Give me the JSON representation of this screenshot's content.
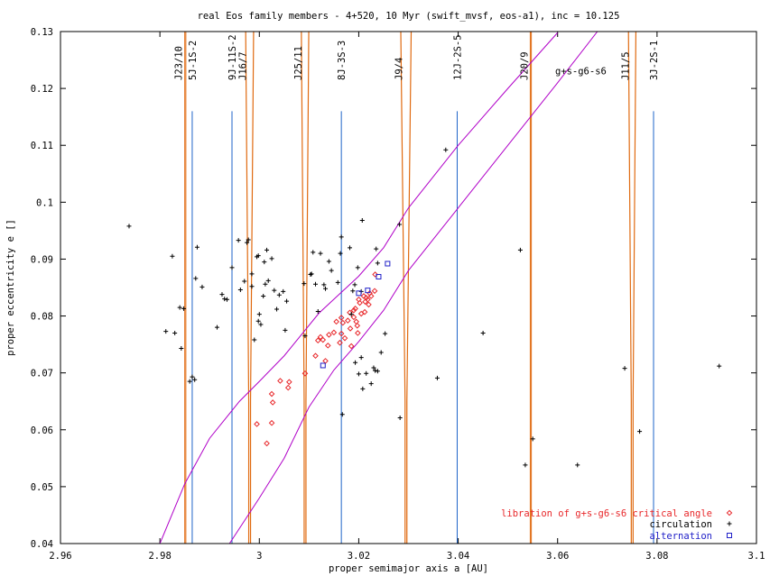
{
  "chart_data": {
    "type": "scatter",
    "title": "real Eos family members - 4+520, 10 Myr (swift_mvsf, eos-a1), inc = 10.125",
    "xlabel": "proper semimajor axis a [AU]",
    "ylabel": "proper eccentricity e []",
    "xlim": [
      2.96,
      3.1
    ],
    "ylim": [
      0.04,
      0.13
    ],
    "x_ticks": [
      2.96,
      2.98,
      3.0,
      3.02,
      3.04,
      3.06,
      3.08,
      3.1
    ],
    "x_tick_labels": [
      "2.96",
      "2.98",
      "3",
      "3.02",
      "3.04",
      "3.06",
      "3.08",
      "3.1"
    ],
    "y_ticks": [
      0.04,
      0.05,
      0.06,
      0.07,
      0.08,
      0.09,
      0.1,
      0.11,
      0.12,
      0.13
    ],
    "y_tick_labels": [
      "0.04",
      "0.05",
      "0.06",
      "0.07",
      "0.08",
      "0.09",
      "0.1",
      "0.11",
      "0.12",
      "0.13"
    ],
    "grid": false,
    "legend_position": "bottom-right",
    "colors": {
      "libration": "#e8272a",
      "circulation": "#000000",
      "alternation": "#2020c8",
      "three_body": "#1e64c8",
      "mmr": "#e06a10",
      "secular": "#b000c8"
    },
    "series": [
      {
        "name": "libration of g+s-g6-s6 critical angle",
        "marker": "diamond",
        "points": [
          [
            2.9995,
            0.061
          ],
          [
            3.0015,
            0.0576
          ],
          [
            3.0025,
            0.0612
          ],
          [
            3.0025,
            0.0663
          ],
          [
            3.0027,
            0.0648
          ],
          [
            3.0042,
            0.0686
          ],
          [
            3.0058,
            0.0674
          ],
          [
            3.006,
            0.0684
          ],
          [
            3.0092,
            0.0699
          ],
          [
            3.0113,
            0.073
          ],
          [
            3.0118,
            0.0757
          ],
          [
            3.0123,
            0.0763
          ],
          [
            3.0128,
            0.0758
          ],
          [
            3.0133,
            0.0721
          ],
          [
            3.0138,
            0.0748
          ],
          [
            3.014,
            0.0767
          ],
          [
            3.015,
            0.0771
          ],
          [
            3.0155,
            0.079
          ],
          [
            3.0162,
            0.0753
          ],
          [
            3.0165,
            0.0797
          ],
          [
            3.0165,
            0.0769
          ],
          [
            3.0168,
            0.0788
          ],
          [
            3.0172,
            0.0761
          ],
          [
            3.0178,
            0.0792
          ],
          [
            3.0182,
            0.0806
          ],
          [
            3.0183,
            0.0778
          ],
          [
            3.0185,
            0.0747
          ],
          [
            3.019,
            0.0798
          ],
          [
            3.019,
            0.081
          ],
          [
            3.0193,
            0.0813
          ],
          [
            3.0195,
            0.079
          ],
          [
            3.0197,
            0.0783
          ],
          [
            3.0198,
            0.077
          ],
          [
            3.02,
            0.0829
          ],
          [
            3.0202,
            0.0823
          ],
          [
            3.0205,
            0.0804
          ],
          [
            3.021,
            0.0835
          ],
          [
            3.0212,
            0.0807
          ],
          [
            3.0213,
            0.0825
          ],
          [
            3.0215,
            0.0832
          ],
          [
            3.0218,
            0.0829
          ],
          [
            3.022,
            0.082
          ],
          [
            3.0222,
            0.084
          ],
          [
            3.0225,
            0.0835
          ],
          [
            3.0232,
            0.0844
          ],
          [
            3.0233,
            0.0873
          ]
        ]
      },
      {
        "name": "circulation",
        "marker": "plus",
        "points": [
          [
            2.9738,
            0.0958
          ],
          [
            2.9812,
            0.0773
          ],
          [
            2.9825,
            0.0905
          ],
          [
            2.983,
            0.077
          ],
          [
            2.984,
            0.0815
          ],
          [
            2.9843,
            0.0743
          ],
          [
            2.9848,
            0.0813
          ],
          [
            2.986,
            0.0685
          ],
          [
            2.9865,
            0.0693
          ],
          [
            2.987,
            0.0688
          ],
          [
            2.9872,
            0.0866
          ],
          [
            2.9875,
            0.0921
          ],
          [
            2.9885,
            0.0851
          ],
          [
            2.9915,
            0.078
          ],
          [
            2.9925,
            0.0838
          ],
          [
            2.993,
            0.083
          ],
          [
            2.9935,
            0.0829
          ],
          [
            2.9945,
            0.0885
          ],
          [
            2.9958,
            0.0933
          ],
          [
            2.9962,
            0.0846
          ],
          [
            2.997,
            0.0861
          ],
          [
            2.9975,
            0.0929
          ],
          [
            2.9978,
            0.0934
          ],
          [
            2.9985,
            0.0874
          ],
          [
            2.9985,
            0.0852
          ],
          [
            2.999,
            0.0758
          ],
          [
            2.9995,
            0.0904
          ],
          [
            2.9998,
            0.0791
          ],
          [
            2.9998,
            0.0906
          ],
          [
            3.0,
            0.0803
          ],
          [
            3.0003,
            0.0785
          ],
          [
            3.0008,
            0.0835
          ],
          [
            3.001,
            0.0895
          ],
          [
            3.0012,
            0.0856
          ],
          [
            3.0015,
            0.0916
          ],
          [
            3.0018,
            0.0862
          ],
          [
            3.0025,
            0.0901
          ],
          [
            3.003,
            0.0845
          ],
          [
            3.0035,
            0.0812
          ],
          [
            3.004,
            0.0837
          ],
          [
            3.0048,
            0.0843
          ],
          [
            3.0052,
            0.0775
          ],
          [
            3.0055,
            0.0826
          ],
          [
            3.009,
            0.0857
          ],
          [
            3.0092,
            0.0765
          ],
          [
            3.0103,
            0.0873
          ],
          [
            3.0105,
            0.0874
          ],
          [
            3.0108,
            0.0912
          ],
          [
            3.0113,
            0.0856
          ],
          [
            3.0118,
            0.0808
          ],
          [
            3.0123,
            0.091
          ],
          [
            3.013,
            0.0855
          ],
          [
            3.0133,
            0.0848
          ],
          [
            3.014,
            0.0896
          ],
          [
            3.0145,
            0.088
          ],
          [
            3.0158,
            0.0859
          ],
          [
            3.0163,
            0.091
          ],
          [
            3.0165,
            0.0939
          ],
          [
            3.0167,
            0.0627
          ],
          [
            3.0182,
            0.092
          ],
          [
            3.0185,
            0.0803
          ],
          [
            3.0188,
            0.0844
          ],
          [
            3.0192,
            0.0855
          ],
          [
            3.0193,
            0.0718
          ],
          [
            3.0198,
            0.0885
          ],
          [
            3.02,
            0.0698
          ],
          [
            3.0205,
            0.0843
          ],
          [
            3.0205,
            0.0727
          ],
          [
            3.0207,
            0.0968
          ],
          [
            3.0208,
            0.0672
          ],
          [
            3.0215,
            0.0699
          ],
          [
            3.0225,
            0.0681
          ],
          [
            3.023,
            0.0709
          ],
          [
            3.0233,
            0.0704
          ],
          [
            3.0235,
            0.0918
          ],
          [
            3.0238,
            0.0893
          ],
          [
            3.0238,
            0.0703
          ],
          [
            3.0245,
            0.0736
          ],
          [
            3.0253,
            0.0769
          ],
          [
            3.0282,
            0.0961
          ],
          [
            3.0283,
            0.0621
          ],
          [
            3.0358,
            0.0691
          ],
          [
            3.0375,
            0.1092
          ],
          [
            3.045,
            0.077
          ],
          [
            3.0525,
            0.0916
          ],
          [
            3.0535,
            0.0538
          ],
          [
            3.055,
            0.0584
          ],
          [
            3.064,
            0.0538
          ],
          [
            3.0735,
            0.0708
          ],
          [
            3.0765,
            0.0597
          ],
          [
            3.0925,
            0.0712
          ]
        ]
      },
      {
        "name": "alternation",
        "marker": "square",
        "points": [
          [
            3.0128,
            0.0713
          ],
          [
            3.02,
            0.084
          ],
          [
            3.0218,
            0.0845
          ],
          [
            3.024,
            0.0869
          ],
          [
            3.0258,
            0.0892
          ]
        ]
      }
    ],
    "three_body_resonances": [
      {
        "label": "5J-1S-2",
        "a": 2.9865
      },
      {
        "label": "9J-11S-2",
        "a": 2.9945
      },
      {
        "label": "8J-3S-3",
        "a": 3.0165
      },
      {
        "label": "12J-2S-5",
        "a": 3.0398
      },
      {
        "label": "3J-2S-1",
        "a": 3.0793
      }
    ],
    "mean_motion_resonances": [
      {
        "label": "J23/10",
        "a_left": 2.985,
        "a_right": 2.9853
      },
      {
        "label": "J16/7",
        "a_left": 2.9978,
        "a_right": 2.9983
      },
      {
        "label": "J25/11",
        "a_left": 3.009,
        "a_right": 3.0094
      },
      {
        "label": "J9/4",
        "a_left": 3.029,
        "a_right": 3.03
      },
      {
        "label": "J20/9",
        "a_left": 3.0545,
        "a_right": 3.0548
      },
      {
        "label": "J11/5",
        "a_left": 3.0748,
        "a_right": 3.0752
      }
    ],
    "secular_resonance": {
      "label": "g+s-g6-s6",
      "upper_branch": [
        [
          2.98,
          0.04
        ],
        [
          2.985,
          0.0505
        ],
        [
          2.99,
          0.0585
        ],
        [
          2.996,
          0.065
        ],
        [
          3.0,
          0.0685
        ],
        [
          3.005,
          0.073
        ],
        [
          3.012,
          0.0805
        ],
        [
          3.02,
          0.087
        ],
        [
          3.025,
          0.092
        ],
        [
          3.03,
          0.099
        ],
        [
          3.04,
          0.11
        ],
        [
          3.05,
          0.12
        ],
        [
          3.06,
          0.1298
        ]
      ],
      "lower_branch": [
        [
          2.994,
          0.04
        ],
        [
          3.0,
          0.048
        ],
        [
          3.005,
          0.055
        ],
        [
          3.01,
          0.064
        ],
        [
          3.015,
          0.0705
        ],
        [
          3.02,
          0.0755
        ],
        [
          3.025,
          0.081
        ],
        [
          3.03,
          0.088
        ],
        [
          3.04,
          0.099
        ],
        [
          3.05,
          0.11
        ],
        [
          3.06,
          0.121
        ],
        [
          3.068,
          0.13
        ]
      ]
    }
  }
}
